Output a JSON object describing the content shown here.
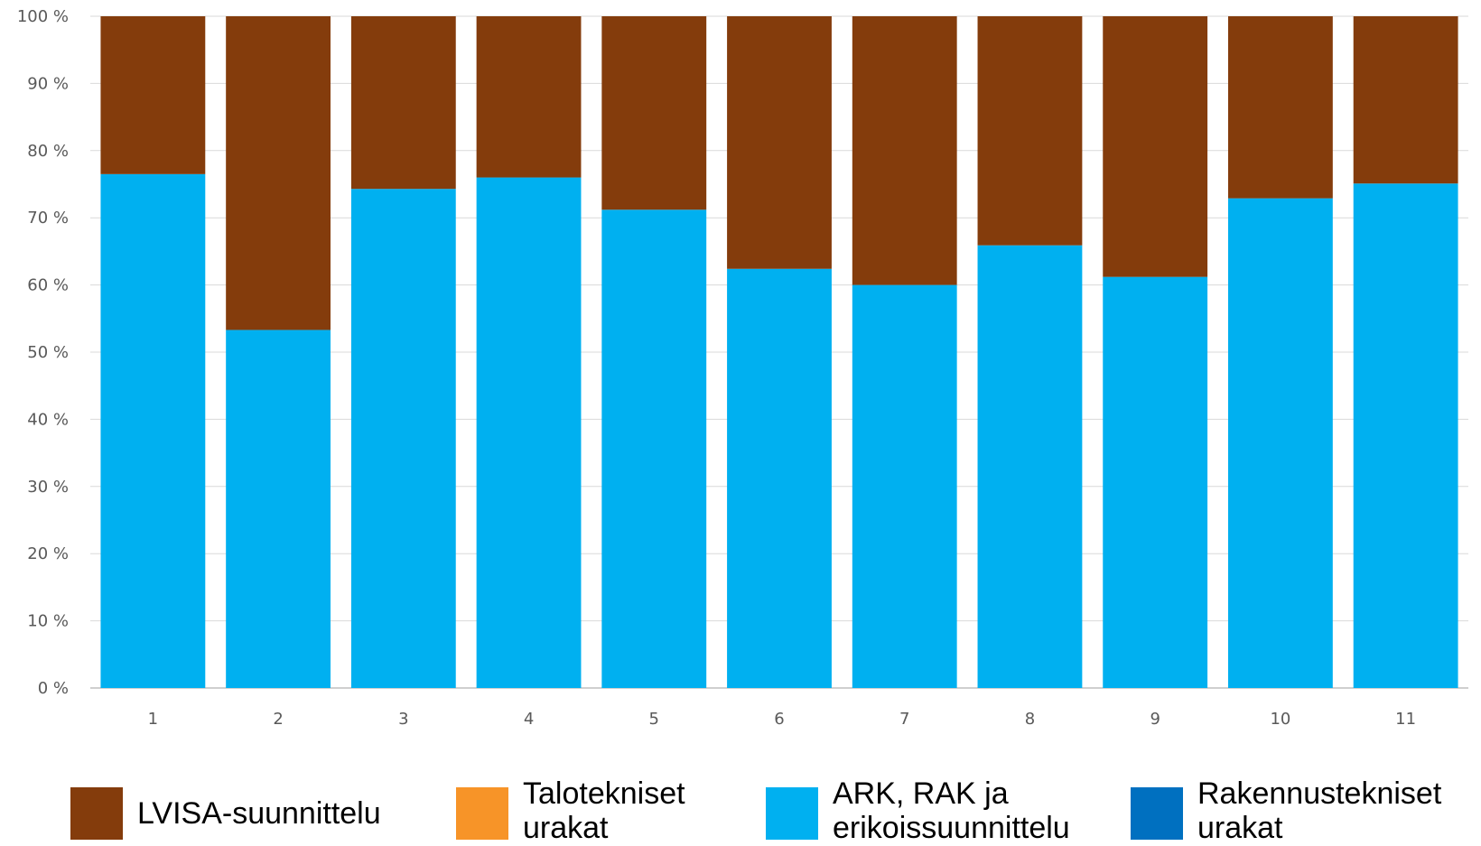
{
  "chart_data": {
    "type": "bar",
    "stacked": true,
    "categories": [
      "1",
      "2",
      "3",
      "4",
      "5",
      "6",
      "7",
      "8",
      "9",
      "10",
      "11"
    ],
    "series": [
      {
        "name": "LVISA-suunnittelu",
        "color": "#843C0C",
        "values": [
          23.5,
          46.7,
          25.7,
          24.0,
          28.8,
          37.6,
          40.0,
          34.1,
          38.8,
          27.1,
          24.9
        ]
      },
      {
        "name": "Talotekniset urakat",
        "color": "#F79428",
        "values": [
          0,
          0,
          0,
          0,
          0,
          0,
          0,
          0,
          0,
          0,
          0
        ]
      },
      {
        "name": "ARK, RAK ja erikoissuunnittelu",
        "color": "#00B0F0",
        "values": [
          76.5,
          53.3,
          74.3,
          76.0,
          71.2,
          62.4,
          60.0,
          65.9,
          61.2,
          72.9,
          75.1
        ]
      },
      {
        "name": "Rakennustekniset urakat",
        "color": "#0070C0",
        "values": [
          0,
          0,
          0,
          0,
          0,
          0,
          0,
          0,
          0,
          0,
          0
        ]
      }
    ],
    "yticks": [
      "0 %",
      "10 %",
      "20 %",
      "30 %",
      "40 %",
      "50 %",
      "60 %",
      "70 %",
      "80 %",
      "90 %",
      "100 %"
    ],
    "ylim": [
      0,
      100
    ],
    "grid": true,
    "legend_position": "bottom",
    "title": "",
    "xlabel": "",
    "ylabel": ""
  }
}
